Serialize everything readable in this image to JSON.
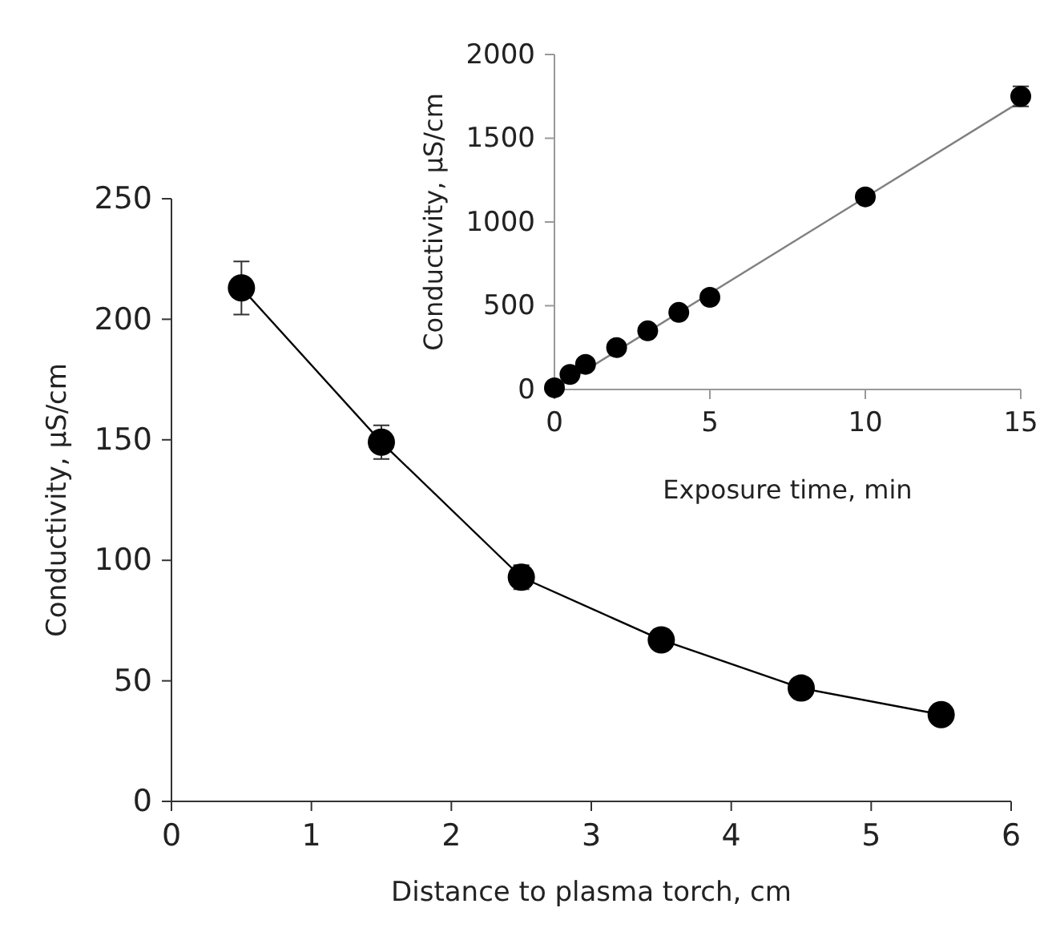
{
  "chart_data": [
    {
      "type": "line",
      "xlabel": "Distance to plasma torch, cm",
      "ylabel": "Conductivity, µS/cm",
      "xlim": [
        0,
        6
      ],
      "xticks": [
        0,
        1,
        2,
        3,
        4,
        5,
        6
      ],
      "ylim": [
        0,
        250
      ],
      "yticks": [
        0,
        50,
        100,
        150,
        200,
        250
      ],
      "marker": "circle",
      "grid": false,
      "x": [
        0.5,
        1.5,
        2.5,
        3.5,
        4.5,
        5.5
      ],
      "series": [
        {
          "color": "#000000",
          "values": [
            213,
            149,
            93,
            67,
            47,
            36
          ],
          "errors": [
            11,
            7,
            5,
            null,
            null,
            null
          ]
        }
      ]
    },
    {
      "type": "scatter",
      "xlabel": "Exposure time, min",
      "ylabel": "Conductivity, µS/cm",
      "xlim": [
        0,
        15
      ],
      "xticks": [
        0,
        5,
        10,
        15
      ],
      "ylim": [
        0,
        2000
      ],
      "yticks": [
        0,
        500,
        1000,
        1500,
        2000
      ],
      "marker": "circle",
      "grid": false,
      "series": [
        {
          "type": "line",
          "color": "#808080",
          "x": [
            0,
            15
          ],
          "values": [
            0,
            1720
          ],
          "marker": "none"
        },
        {
          "color": "#000000",
          "x": [
            0,
            0.5,
            1,
            2,
            3,
            4,
            5,
            10,
            15
          ],
          "values": [
            10,
            90,
            150,
            250,
            350,
            460,
            550,
            1150,
            1750
          ],
          "errors": [
            null,
            null,
            null,
            null,
            null,
            null,
            null,
            null,
            60
          ]
        }
      ]
    }
  ]
}
